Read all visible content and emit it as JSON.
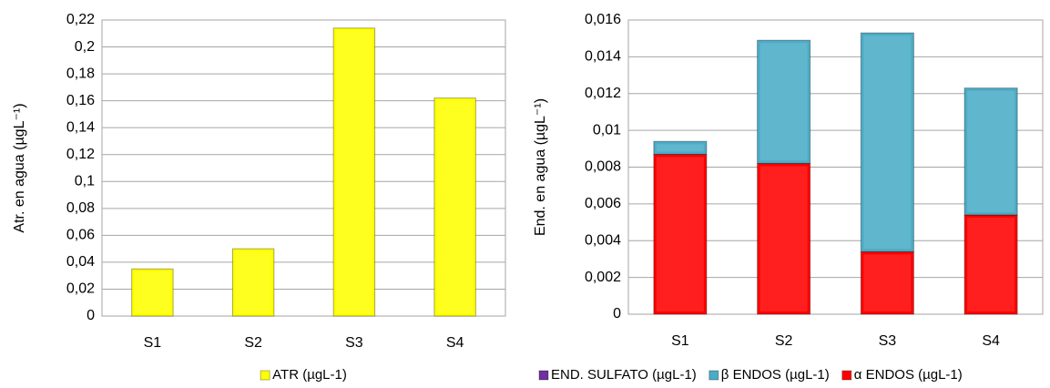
{
  "chart_data": [
    {
      "type": "bar",
      "y_label": "Atr. en agua (µgL⁻¹)",
      "categories": [
        "S1",
        "S2",
        "S3",
        "S4"
      ],
      "series": [
        {
          "name": "ATR (µgL-1)",
          "color": "#ffff00",
          "values": [
            0.035,
            0.05,
            0.214,
            0.162
          ]
        }
      ],
      "ylim": [
        0,
        0.22
      ],
      "yticks": [
        0,
        {
          "value": 0.02,
          "label": "0,02"
        },
        {
          "value": 0.04,
          "label": "0,04"
        },
        {
          "value": 0.06,
          "label": "0,06"
        },
        {
          "value": 0.08,
          "label": "0,08"
        },
        {
          "value": 0.1,
          "label": "0,1"
        },
        {
          "value": 0.12,
          "label": "0,12"
        },
        {
          "value": 0.14,
          "label": "0,14"
        },
        {
          "value": 0.16,
          "label": "0,16"
        },
        {
          "value": 0.18,
          "label": "0,18"
        },
        {
          "value": 0.2,
          "label": "0,2"
        },
        {
          "value": 0.22,
          "label": "0,22"
        }
      ],
      "grid": true,
      "legend": "bottom"
    },
    {
      "type": "stacked_bar",
      "y_label": "End. en agua (µgL⁻¹)",
      "categories": [
        "S1",
        "S2",
        "S3",
        "S4"
      ],
      "series": [
        {
          "name": "α ENDOS (µgL-1)",
          "color": "#ff0000",
          "values": [
            0.0087,
            0.0082,
            0.0034,
            0.0054
          ]
        },
        {
          "name": "β ENDOS (µgL-1)",
          "color": "#4bacc6",
          "values": [
            0.0007,
            0.0067,
            0.0119,
            0.0069
          ]
        },
        {
          "name": "END. SULFATO (µgL-1)",
          "color": "#7030a0",
          "values": [
            0,
            0,
            0,
            0
          ]
        }
      ],
      "ylim": [
        0,
        0.016
      ],
      "yticks": [
        0,
        {
          "value": 0.002,
          "label": "0,002"
        },
        {
          "value": 0.004,
          "label": "0,004"
        },
        {
          "value": 0.006,
          "label": "0,006"
        },
        {
          "value": 0.008,
          "label": "0,008"
        },
        {
          "value": 0.01,
          "label": "0,01"
        },
        {
          "value": 0.012,
          "label": "0,012"
        },
        {
          "value": 0.014,
          "label": "0,014"
        },
        {
          "value": 0.016,
          "label": "0,016"
        }
      ],
      "grid": true,
      "legend": "bottom"
    }
  ]
}
